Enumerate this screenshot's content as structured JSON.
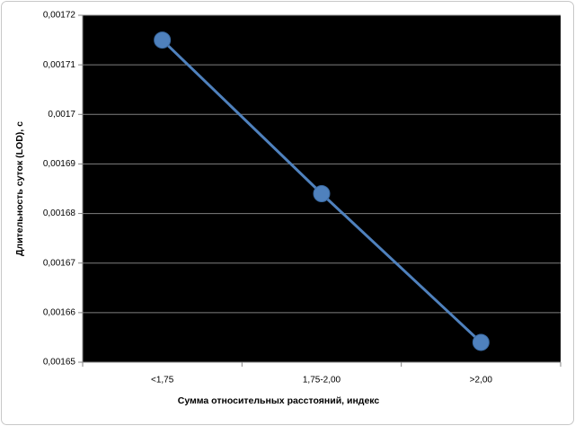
{
  "chart_data": {
    "type": "line",
    "x_label": "Сумма относительных расстояний, индекс",
    "y_label": "Длительность суток (LOD), с",
    "categories": [
      "<1,75",
      "1,75-2,00",
      ">2,00"
    ],
    "values": [
      0.001715,
      0.001684,
      0.001654
    ],
    "color": "#4f81bd",
    "ylim": [
      0.00165,
      0.00172
    ],
    "yticks": [
      {
        "value": 0.00165,
        "label": "0,00165"
      },
      {
        "value": 0.00166,
        "label": "0,00166"
      },
      {
        "value": 0.00167,
        "label": "0,00167"
      },
      {
        "value": 0.00168,
        "label": "0,00168"
      },
      {
        "value": 0.00169,
        "label": "0,00169"
      },
      {
        "value": 0.0017,
        "label": "0,0017"
      },
      {
        "value": 0.00171,
        "label": "0,00171"
      },
      {
        "value": 0.00172,
        "label": "0,00172"
      }
    ],
    "grid": true
  }
}
